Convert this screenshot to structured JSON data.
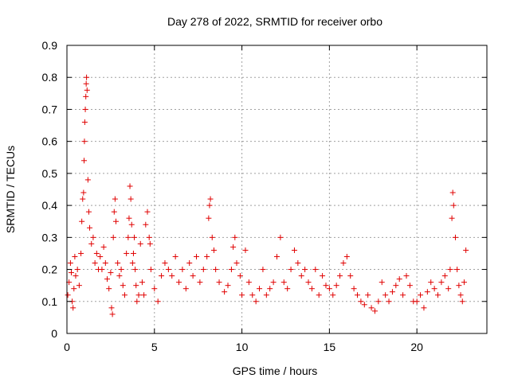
{
  "chart_data": {
    "type": "scatter",
    "title": "Day 278 of 2022, SRMTID for receiver orbo",
    "xlabel": "GPS time / hours",
    "ylabel": "SRMTID / TECUs",
    "xlim": [
      0,
      24
    ],
    "ylim": [
      0,
      0.9
    ],
    "x_ticks": [
      0,
      5,
      10,
      15,
      20
    ],
    "x_tick_labels": [
      "0",
      "5",
      "10",
      "15",
      "20"
    ],
    "y_ticks": [
      0,
      0.1,
      0.2,
      0.3,
      0.4,
      0.5,
      0.6,
      0.7,
      0.8,
      0.9
    ],
    "y_tick_labels": [
      "0",
      "0.1",
      "0.2",
      "0.3",
      "0.4",
      "0.5",
      "0.6",
      "0.7",
      "0.8",
      "0.9"
    ],
    "grid": true,
    "marker": "+",
    "marker_color": "#e00000",
    "series": [
      {
        "name": "SRMTID",
        "points": [
          [
            0.05,
            0.12
          ],
          [
            0.12,
            0.16
          ],
          [
            0.2,
            0.22
          ],
          [
            0.25,
            0.19
          ],
          [
            0.3,
            0.1
          ],
          [
            0.35,
            0.08
          ],
          [
            0.4,
            0.14
          ],
          [
            0.45,
            0.24
          ],
          [
            0.5,
            0.18
          ],
          [
            0.6,
            0.2
          ],
          [
            0.7,
            0.15
          ],
          [
            0.8,
            0.25
          ],
          [
            0.85,
            0.35
          ],
          [
            0.9,
            0.42
          ],
          [
            0.95,
            0.44
          ],
          [
            0.98,
            0.54
          ],
          [
            1.0,
            0.6
          ],
          [
            1.02,
            0.66
          ],
          [
            1.05,
            0.7
          ],
          [
            1.08,
            0.74
          ],
          [
            1.1,
            0.78
          ],
          [
            1.12,
            0.8
          ],
          [
            1.15,
            0.76
          ],
          [
            1.2,
            0.48
          ],
          [
            1.25,
            0.38
          ],
          [
            1.3,
            0.33
          ],
          [
            1.4,
            0.28
          ],
          [
            1.5,
            0.3
          ],
          [
            1.6,
            0.22
          ],
          [
            1.7,
            0.25
          ],
          [
            1.8,
            0.2
          ],
          [
            1.9,
            0.24
          ],
          [
            2.0,
            0.2
          ],
          [
            2.1,
            0.27
          ],
          [
            2.2,
            0.22
          ],
          [
            2.3,
            0.17
          ],
          [
            2.4,
            0.14
          ],
          [
            2.5,
            0.19
          ],
          [
            2.55,
            0.08
          ],
          [
            2.6,
            0.06
          ],
          [
            2.65,
            0.3
          ],
          [
            2.7,
            0.38
          ],
          [
            2.75,
            0.42
          ],
          [
            2.8,
            0.35
          ],
          [
            2.9,
            0.22
          ],
          [
            3.0,
            0.18
          ],
          [
            3.1,
            0.2
          ],
          [
            3.2,
            0.15
          ],
          [
            3.3,
            0.12
          ],
          [
            3.4,
            0.25
          ],
          [
            3.5,
            0.3
          ],
          [
            3.55,
            0.36
          ],
          [
            3.6,
            0.46
          ],
          [
            3.65,
            0.42
          ],
          [
            3.7,
            0.34
          ],
          [
            3.75,
            0.22
          ],
          [
            3.8,
            0.25
          ],
          [
            3.85,
            0.3
          ],
          [
            3.9,
            0.2
          ],
          [
            3.95,
            0.15
          ],
          [
            4.0,
            0.1
          ],
          [
            4.1,
            0.12
          ],
          [
            4.2,
            0.28
          ],
          [
            4.3,
            0.16
          ],
          [
            4.4,
            0.12
          ],
          [
            4.5,
            0.34
          ],
          [
            4.6,
            0.38
          ],
          [
            4.7,
            0.3
          ],
          [
            4.75,
            0.28
          ],
          [
            4.8,
            0.2
          ],
          [
            5.0,
            0.14
          ],
          [
            5.2,
            0.1
          ],
          [
            5.4,
            0.18
          ],
          [
            5.6,
            0.22
          ],
          [
            5.8,
            0.2
          ],
          [
            6.0,
            0.18
          ],
          [
            6.2,
            0.24
          ],
          [
            6.4,
            0.16
          ],
          [
            6.6,
            0.2
          ],
          [
            6.8,
            0.14
          ],
          [
            7.0,
            0.22
          ],
          [
            7.2,
            0.18
          ],
          [
            7.4,
            0.24
          ],
          [
            7.6,
            0.16
          ],
          [
            7.8,
            0.2
          ],
          [
            8.0,
            0.24
          ],
          [
            8.1,
            0.36
          ],
          [
            8.15,
            0.4
          ],
          [
            8.2,
            0.42
          ],
          [
            8.3,
            0.3
          ],
          [
            8.4,
            0.26
          ],
          [
            8.5,
            0.2
          ],
          [
            8.7,
            0.16
          ],
          [
            9.0,
            0.13
          ],
          [
            9.2,
            0.15
          ],
          [
            9.4,
            0.2
          ],
          [
            9.5,
            0.27
          ],
          [
            9.6,
            0.3
          ],
          [
            9.7,
            0.22
          ],
          [
            9.9,
            0.18
          ],
          [
            10.0,
            0.12
          ],
          [
            10.2,
            0.26
          ],
          [
            10.4,
            0.16
          ],
          [
            10.6,
            0.12
          ],
          [
            10.8,
            0.1
          ],
          [
            11.0,
            0.14
          ],
          [
            11.2,
            0.2
          ],
          [
            11.4,
            0.12
          ],
          [
            11.6,
            0.14
          ],
          [
            11.8,
            0.16
          ],
          [
            12.0,
            0.24
          ],
          [
            12.2,
            0.3
          ],
          [
            12.4,
            0.16
          ],
          [
            12.6,
            0.14
          ],
          [
            12.8,
            0.2
          ],
          [
            13.0,
            0.26
          ],
          [
            13.2,
            0.22
          ],
          [
            13.4,
            0.18
          ],
          [
            13.6,
            0.2
          ],
          [
            13.8,
            0.16
          ],
          [
            14.0,
            0.14
          ],
          [
            14.2,
            0.2
          ],
          [
            14.4,
            0.12
          ],
          [
            14.6,
            0.18
          ],
          [
            14.8,
            0.15
          ],
          [
            15.0,
            0.14
          ],
          [
            15.2,
            0.12
          ],
          [
            15.4,
            0.15
          ],
          [
            15.6,
            0.18
          ],
          [
            15.8,
            0.22
          ],
          [
            16.0,
            0.24
          ],
          [
            16.2,
            0.18
          ],
          [
            16.4,
            0.14
          ],
          [
            16.6,
            0.12
          ],
          [
            16.8,
            0.1
          ],
          [
            17.0,
            0.09
          ],
          [
            17.2,
            0.12
          ],
          [
            17.4,
            0.08
          ],
          [
            17.6,
            0.07
          ],
          [
            17.8,
            0.1
          ],
          [
            18.0,
            0.16
          ],
          [
            18.2,
            0.12
          ],
          [
            18.4,
            0.1
          ],
          [
            18.6,
            0.13
          ],
          [
            18.8,
            0.15
          ],
          [
            19.0,
            0.17
          ],
          [
            19.2,
            0.12
          ],
          [
            19.4,
            0.18
          ],
          [
            19.6,
            0.15
          ],
          [
            19.8,
            0.1
          ],
          [
            20.0,
            0.1
          ],
          [
            20.2,
            0.12
          ],
          [
            20.4,
            0.08
          ],
          [
            20.6,
            0.13
          ],
          [
            20.8,
            0.16
          ],
          [
            21.0,
            0.14
          ],
          [
            21.2,
            0.12
          ],
          [
            21.4,
            0.16
          ],
          [
            21.6,
            0.18
          ],
          [
            21.8,
            0.14
          ],
          [
            21.9,
            0.2
          ],
          [
            22.0,
            0.36
          ],
          [
            22.05,
            0.44
          ],
          [
            22.1,
            0.4
          ],
          [
            22.2,
            0.3
          ],
          [
            22.3,
            0.2
          ],
          [
            22.4,
            0.15
          ],
          [
            22.5,
            0.12
          ],
          [
            22.6,
            0.1
          ],
          [
            22.7,
            0.16
          ],
          [
            22.8,
            0.26
          ]
        ]
      }
    ]
  }
}
